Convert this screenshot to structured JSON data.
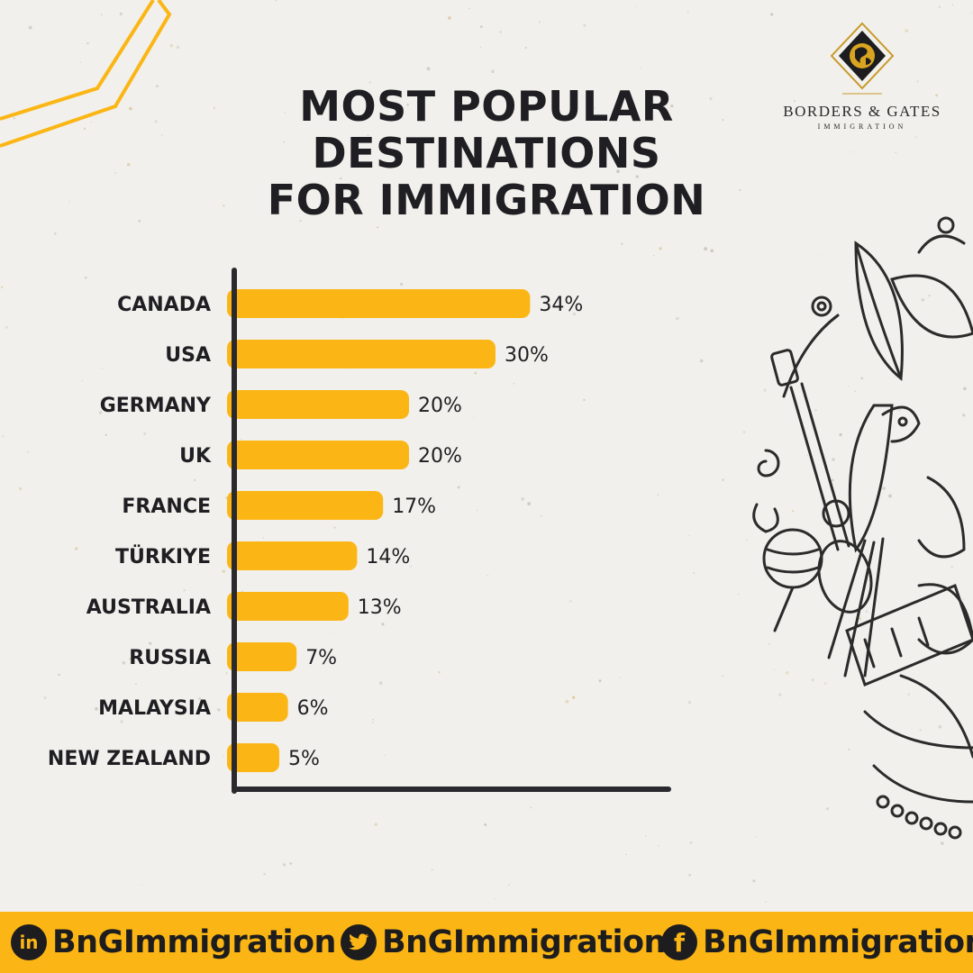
{
  "title": {
    "line1": "MOST POPULAR",
    "line2": "DESTINATIONS",
    "line3": "FOR IMMIGRATION"
  },
  "brand": {
    "name": "BORDERS & GATES",
    "sub": "IMMIGRATION"
  },
  "chart_data": {
    "type": "bar",
    "orientation": "horizontal",
    "categories": [
      "CANADA",
      "USA",
      "GERMANY",
      "UK",
      "FRANCE",
      "TÜRKIYE",
      "AUSTRALIA",
      "RUSSIA",
      "MALAYSIA",
      "NEW ZEALAND"
    ],
    "values": [
      34,
      30,
      20,
      20,
      17,
      14,
      13,
      7,
      6,
      5
    ],
    "labels": [
      "34%",
      "30%",
      "20%",
      "20%",
      "17%",
      "14%",
      "13%",
      "7%",
      "6%",
      "5%"
    ],
    "title": "MOST POPULAR DESTINATIONS FOR IMMIGRATION",
    "xlabel": "",
    "ylabel": "",
    "xlim": [
      0,
      50
    ],
    "grid": false,
    "legend": "none"
  },
  "colors": {
    "bar": "#fbb615",
    "axis": "#2a2a2e",
    "text": "#1f1f23",
    "footer": "#fbb615"
  },
  "footer": {
    "linkedin": {
      "icon": "linkedin-icon",
      "glyph": "in",
      "label": "BnGImmigration"
    },
    "twitter": {
      "icon": "twitter-icon",
      "glyph": "🐦",
      "label": "BnGImmigration"
    },
    "facebook": {
      "icon": "facebook-icon",
      "glyph": "f",
      "label": "BnGImmigration"
    }
  }
}
